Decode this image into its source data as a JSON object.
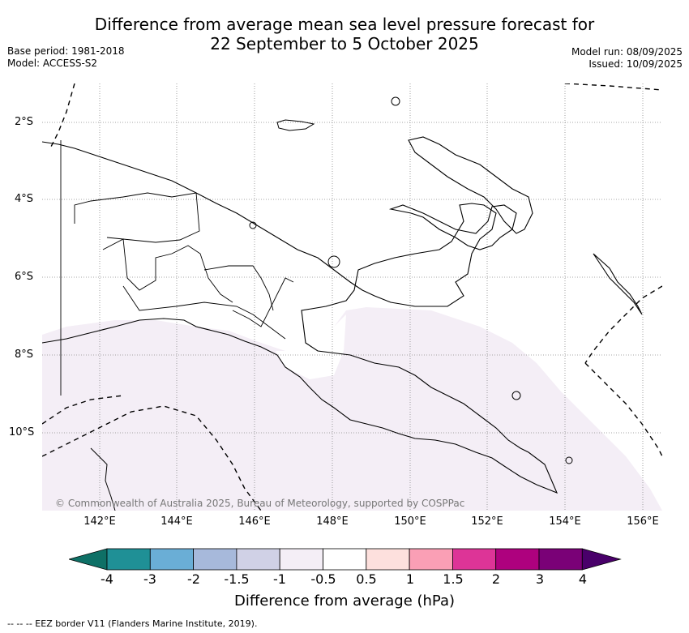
{
  "title_line1": "Difference from average mean sea level pressure forecast for",
  "title_line2": "22 September to 5 October 2025",
  "base_period": "Base period: 1981-2018",
  "model": "Model: ACCESS-S2",
  "model_run": "Model run: 08/09/2025",
  "issued": "Issued: 10/09/2025",
  "lat_labels": [
    "2°S",
    "4°S",
    "6°S",
    "8°S",
    "10°S"
  ],
  "lon_labels": [
    "142°E",
    "144°E",
    "146°E",
    "148°E",
    "150°E",
    "152°E",
    "154°E",
    "156°E"
  ],
  "copyright": "© Commonwealth of Australia 2025, Bureau of Meteorology, supported by COSPPac",
  "colorbar": {
    "title": "Difference from average (hPa)",
    "ticks": [
      "-4",
      "-3",
      "-2",
      "-1.5",
      "-1",
      "-0.5",
      "0.5",
      "1",
      "1.5",
      "2",
      "3",
      "4"
    ],
    "colors": [
      "#0e7066",
      "#1f9096",
      "#6aaed6",
      "#a7b9db",
      "#d0d1e6",
      "#f4eef6",
      "#ffffff",
      "#fde0dd",
      "#fa9fb5",
      "#dd3497",
      "#ae017e",
      "#7a0177",
      "#49006a"
    ]
  },
  "footnote": "-- --  -- EEZ border V11 (Flanders Marine Institute, 2019).",
  "map_fill_color": "#f4eef6"
}
